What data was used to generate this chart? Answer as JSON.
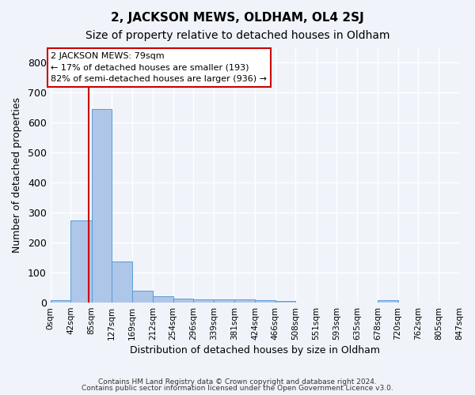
{
  "title": "2, JACKSON MEWS, OLDHAM, OL4 2SJ",
  "subtitle": "Size of property relative to detached houses in Oldham",
  "xlabel": "Distribution of detached houses by size in Oldham",
  "ylabel": "Number of detached properties",
  "bar_color": "#aec6e8",
  "bar_edge_color": "#5b9bd5",
  "background_color": "#f0f4fa",
  "grid_color": "#ffffff",
  "bin_edges": [
    0,
    42,
    85,
    127,
    169,
    212,
    254,
    296,
    339,
    381,
    424,
    466,
    508,
    551,
    593,
    635,
    678,
    720,
    762,
    805,
    847
  ],
  "bin_labels": [
    "0sqm",
    "42sqm",
    "85sqm",
    "127sqm",
    "169sqm",
    "212sqm",
    "254sqm",
    "296sqm",
    "339sqm",
    "381sqm",
    "424sqm",
    "466sqm",
    "508sqm",
    "551sqm",
    "593sqm",
    "635sqm",
    "678sqm",
    "720sqm",
    "762sqm",
    "805sqm",
    "847sqm"
  ],
  "bar_heights": [
    8,
    275,
    645,
    137,
    40,
    20,
    13,
    10,
    10,
    10,
    8,
    5,
    0,
    0,
    0,
    0,
    7,
    0,
    0,
    0
  ],
  "property_size": 79,
  "red_line_color": "#cc0000",
  "annotation_text": "2 JACKSON MEWS: 79sqm\n← 17% of detached houses are smaller (193)\n82% of semi-detached houses are larger (936) →",
  "annotation_box_color": "#ffffff",
  "annotation_box_edge": "#cc0000",
  "ylim": [
    0,
    850
  ],
  "yticks": [
    0,
    100,
    200,
    300,
    400,
    500,
    600,
    700,
    800
  ],
  "xlim": [
    0,
    847
  ],
  "footnote1": "Contains HM Land Registry data © Crown copyright and database right 2024.",
  "footnote2": "Contains public sector information licensed under the Open Government Licence v3.0."
}
